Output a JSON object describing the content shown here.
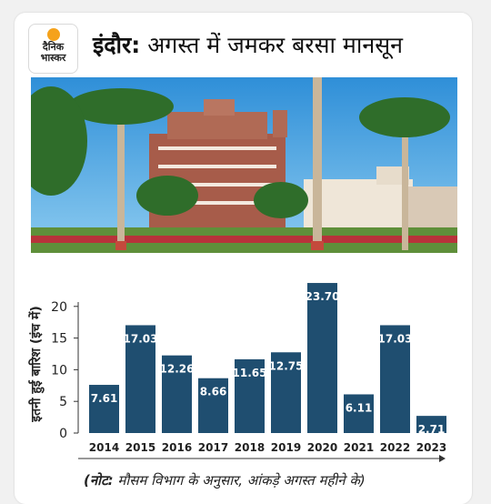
{
  "brand": {
    "logo_text_line1": "दैनिक",
    "logo_text_line2": "भास्कर",
    "logo_accent": "#f5a21b"
  },
  "headline": {
    "place": "इंदौर:",
    "text": "अगस्त में जमकर बरसा मानसून"
  },
  "footnote": {
    "label": "(नोट:",
    "text": "मौसम विभाग के अनुसार, आंकड़े अगस्त महीने के)"
  },
  "chart_data": {
    "type": "bar",
    "categories": [
      "2014",
      "2015",
      "2016",
      "2017",
      "2018",
      "2019",
      "2020",
      "2021",
      "2022",
      "2023"
    ],
    "values": [
      7.61,
      17.03,
      12.26,
      8.66,
      11.65,
      12.75,
      23.7,
      6.11,
      17.03,
      2.71
    ],
    "value_labels": [
      "7.61",
      "17.03",
      "12.26",
      "8.66",
      "11.65",
      "12.75",
      "23.70",
      "6.11",
      "17.03",
      "2.71"
    ],
    "ylabel": "इतनी हुई बारिश (इंच में)",
    "xlabel": "",
    "yticks": [
      "0",
      "5",
      "10",
      "15",
      "20"
    ],
    "ylim": [
      0,
      25
    ],
    "bar_color": "#1f4e70",
    "grid": false,
    "legend": "none"
  }
}
